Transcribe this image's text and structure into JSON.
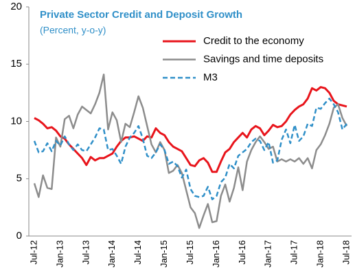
{
  "chart_data": {
    "type": "line",
    "title": "Private Sector Credit and Deposit Growth",
    "subtitle": "(Percent, y-o-y)",
    "categories": [
      "Jul-12",
      null,
      null,
      null,
      null,
      null,
      "Jan-13",
      null,
      null,
      null,
      null,
      null,
      "Jul-13",
      null,
      null,
      null,
      null,
      null,
      "Jan-14",
      null,
      null,
      null,
      null,
      null,
      "Jul-14",
      null,
      null,
      null,
      null,
      null,
      "Jan-15",
      null,
      null,
      null,
      null,
      null,
      "Jul-15",
      null,
      null,
      null,
      null,
      null,
      "Jan-16",
      null,
      null,
      null,
      null,
      null,
      "Jul-16",
      null,
      null,
      null,
      null,
      null,
      "Jan-17",
      null,
      null,
      null,
      null,
      null,
      "Jul-17",
      null,
      null,
      null,
      null,
      null,
      "Jan-18",
      null,
      null,
      null,
      null,
      null,
      "Jul-18"
    ],
    "ylim": [
      0,
      20
    ],
    "yticks": [
      0,
      5,
      10,
      15,
      20
    ],
    "series": [
      {
        "name": "Credit to the economy",
        "color": "#e8141b",
        "style": "solid",
        "values": [
          10.3,
          10.1,
          9.8,
          9.4,
          9.5,
          9.2,
          8.7,
          8.5,
          8.0,
          7.6,
          7.2,
          6.8,
          6.2,
          6.9,
          6.6,
          6.8,
          6.8,
          7.0,
          7.2,
          7.8,
          8.3,
          8.6,
          8.6,
          8.7,
          8.5,
          8.3,
          8.7,
          8.6,
          9.4,
          9.0,
          8.8,
          8.2,
          7.8,
          7.6,
          7.4,
          6.8,
          6.2,
          6.1,
          6.6,
          6.8,
          6.4,
          5.6,
          5.6,
          6.5,
          7.3,
          7.6,
          8.2,
          8.6,
          9.0,
          8.6,
          9.3,
          9.6,
          9.4,
          8.8,
          9.2,
          9.7,
          9.5,
          9.6,
          10.0,
          10.6,
          11.0,
          11.3,
          11.5,
          12.0,
          12.9,
          12.7,
          13.0,
          12.9,
          12.5,
          11.8,
          11.5,
          11.4,
          11.3
        ]
      },
      {
        "name": "Savings and time deposits",
        "color": "#8c8c8c",
        "style": "solid",
        "values": [
          4.6,
          3.4,
          5.3,
          4.2,
          4.1,
          8.6,
          7.8,
          10.2,
          10.5,
          9.4,
          10.6,
          11.3,
          11.0,
          10.7,
          11.5,
          12.5,
          14.1,
          9.3,
          10.8,
          10.1,
          8.2,
          9.8,
          9.5,
          10.8,
          12.2,
          11.2,
          9.6,
          8.0,
          7.3,
          8.2,
          7.5,
          5.5,
          5.7,
          6.2,
          5.5,
          4.0,
          2.5,
          2.0,
          0.7,
          1.8,
          2.8,
          1.2,
          1.3,
          3.5,
          4.5,
          3.0,
          4.2,
          6.0,
          4.0,
          6.5,
          7.5,
          8.2,
          8.7,
          8.2,
          7.6,
          7.8,
          6.5,
          6.7,
          6.5,
          6.7,
          6.5,
          6.8,
          6.3,
          6.8,
          5.9,
          7.5,
          8.0,
          8.8,
          9.8,
          11.2,
          11.5,
          10.3,
          9.6
        ]
      },
      {
        "name": "M3",
        "color": "#2f8fc8",
        "style": "dashed",
        "values": [
          8.3,
          7.3,
          7.4,
          8.1,
          7.4,
          8.3,
          7.9,
          8.7,
          8.0,
          7.5,
          8.0,
          7.5,
          7.4,
          8.0,
          8.6,
          9.4,
          9.3,
          7.5,
          7.6,
          7.0,
          6.3,
          7.8,
          8.6,
          9.0,
          9.6,
          8.5,
          7.0,
          6.8,
          7.3,
          8.0,
          7.5,
          6.3,
          6.5,
          6.1,
          5.1,
          5.8,
          4.1,
          3.5,
          3.4,
          3.5,
          4.3,
          3.2,
          3.5,
          4.7,
          5.1,
          6.3,
          5.9,
          7.0,
          7.3,
          7.6,
          8.2,
          8.5,
          8.3,
          7.5,
          8.2,
          6.4,
          6.6,
          8.4,
          9.3,
          8.1,
          9.7,
          8.3,
          8.7,
          9.8,
          9.6,
          11.2,
          11.1,
          11.6,
          12.0,
          11.5,
          10.8,
          9.3,
          9.8
        ]
      }
    ]
  }
}
